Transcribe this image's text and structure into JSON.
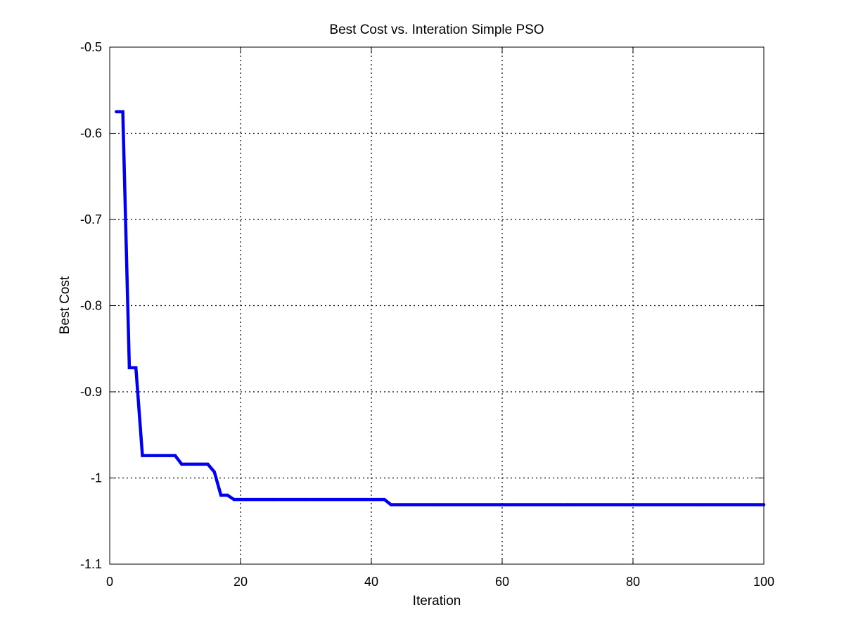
{
  "chart_data": {
    "type": "line",
    "title": "Best Cost vs. Interation Simple PSO",
    "xlabel": "Iteration",
    "ylabel": "Best Cost",
    "xlim": [
      0,
      100
    ],
    "ylim": [
      -1.1,
      -0.5
    ],
    "xticks": [
      0,
      20,
      40,
      60,
      80,
      100
    ],
    "yticks": [
      -1.1,
      -1.0,
      -0.9,
      -0.8,
      -0.7,
      -0.6,
      -0.5
    ],
    "xtick_labels": [
      "0",
      "20",
      "40",
      "60",
      "80",
      "100"
    ],
    "ytick_labels": [
      "-1.1",
      "-1",
      "-0.9",
      "-0.8",
      "-0.7",
      "-0.6",
      "-0.5"
    ],
    "grid": true,
    "grid_style": "dotted",
    "series": [
      {
        "color": "#0000ee",
        "x": [
          1,
          2,
          3,
          4,
          5,
          6,
          7,
          8,
          9,
          10,
          11,
          12,
          13,
          14,
          15,
          16,
          17,
          18,
          19,
          20,
          25,
          30,
          35,
          40,
          42,
          43,
          50,
          60,
          70,
          80,
          90,
          100
        ],
        "y": [
          -0.575,
          -0.575,
          -0.872,
          -0.872,
          -0.974,
          -0.974,
          -0.974,
          -0.974,
          -0.974,
          -0.974,
          -0.984,
          -0.984,
          -0.984,
          -0.984,
          -0.984,
          -0.993,
          -1.02,
          -1.02,
          -1.025,
          -1.025,
          -1.025,
          -1.025,
          -1.025,
          -1.025,
          -1.025,
          -1.031,
          -1.031,
          -1.031,
          -1.031,
          -1.031,
          -1.031,
          -1.031
        ]
      }
    ]
  }
}
